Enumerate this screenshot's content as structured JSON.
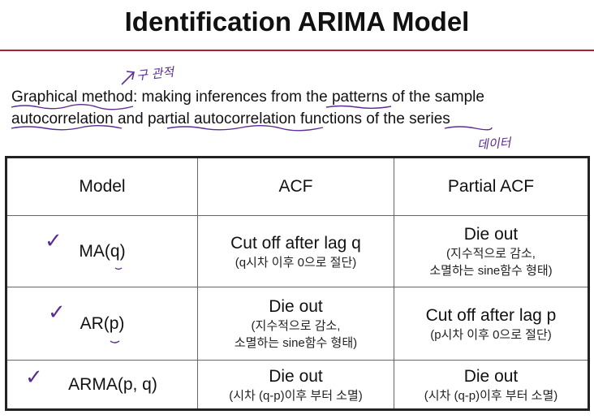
{
  "title": "Identification ARIMA Model",
  "intro": {
    "part1": "Graphical method",
    "part2": ": making inferences from the patterns of the sample autocorrelation and partial autocorrelation functions of the series"
  },
  "annotations": {
    "top": "구 관적",
    "right": "데이터",
    "check_mark": "✓"
  },
  "table": {
    "headers": [
      "Model",
      "ACF",
      "Partial ACF"
    ],
    "rows": [
      {
        "model": "MA(q)",
        "acf_main": "Cut off after lag q",
        "acf_sub": "(q시차 이후 0으로 절단)",
        "pacf_main": "Die out",
        "pacf_sub": "(지수적으로 감소,",
        "pacf_sub2": "소멸하는 sine함수 형태)"
      },
      {
        "model": "AR(p)",
        "acf_main": "Die out",
        "acf_sub": "(지수적으로 감소,",
        "acf_sub2": "소멸하는 sine함수 형태)",
        "pacf_main": "Cut off after lag p",
        "pacf_sub": "(p시차 이후 0으로 절단)"
      },
      {
        "model": "ARMA(p, q)",
        "acf_main": "Die out",
        "acf_sub": "(시차 (q-p)이후 부터 소멸)",
        "pacf_main": "Die out",
        "pacf_sub": "(시차 (q-p)이후 부터 소멸)"
      }
    ]
  },
  "colors": {
    "title_rule": "#b01e34",
    "annotation": "#5b2d93"
  }
}
